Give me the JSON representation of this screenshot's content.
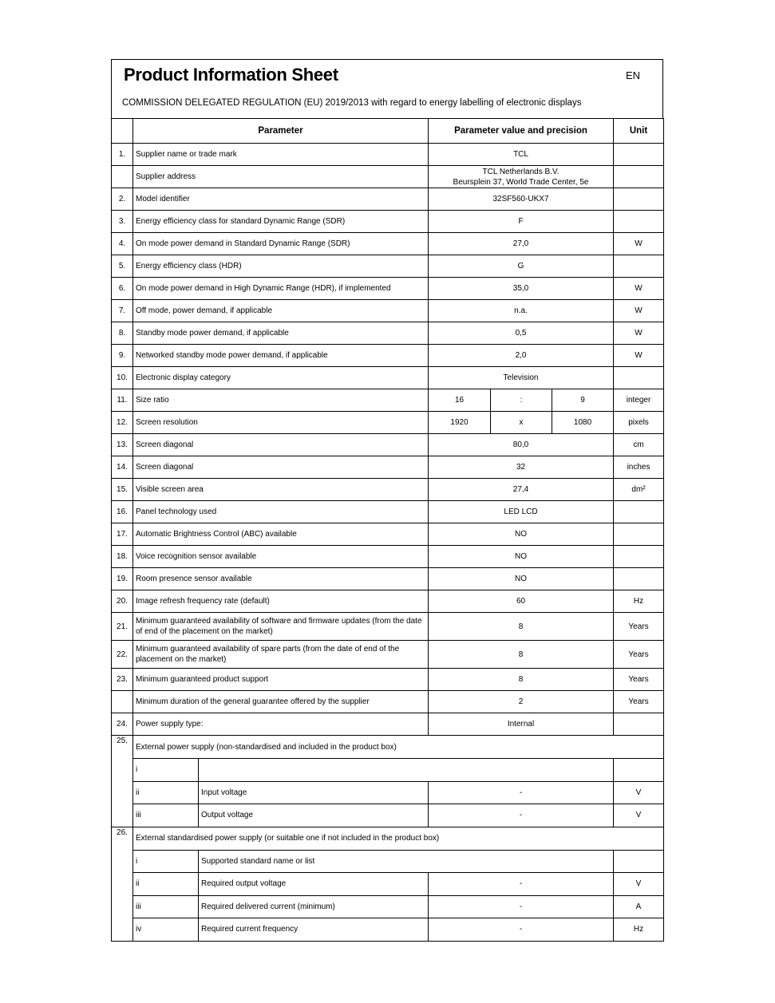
{
  "header": {
    "title": "Product Information Sheet",
    "language": "EN",
    "regulation": "COMMISSION DELEGATED REGULATION (EU) 2019/2013 with regard to energy labelling of electronic displays"
  },
  "columns": {
    "parameter": "Parameter",
    "value": "Parameter value and precision",
    "unit": "Unit"
  },
  "rows": [
    {
      "no": "1.",
      "param": "Supplier name or trade mark",
      "value": "TCL",
      "unit": ""
    },
    {
      "no": "",
      "param": "Supplier address",
      "value": "TCL Netherlands B.V.",
      "value2": "Beursplein 37, World Trade Center, 5e",
      "unit": ""
    },
    {
      "no": "2.",
      "param": "Model identifier",
      "value": "32SF560-UKX7",
      "unit": ""
    },
    {
      "no": "3.",
      "param": "Energy efficiency class for standard Dynamic Range (SDR)",
      "value": "F",
      "unit": ""
    },
    {
      "no": "4.",
      "param": "On mode power demand in Standard Dynamic Range (SDR)",
      "value": "27,0",
      "unit": "W"
    },
    {
      "no": "5.",
      "param": "Energy efficiency class (HDR)",
      "value": "G",
      "unit": ""
    },
    {
      "no": "6.",
      "param": "On mode power demand in High Dynamic Range (HDR), if implemented",
      "value": "35,0",
      "unit": "W"
    },
    {
      "no": "7.",
      "param": "Off mode, power demand, if applicable",
      "value": "n.a.",
      "unit": "W"
    },
    {
      "no": "8.",
      "param": "Standby mode power demand, if applicable",
      "value": "0,5",
      "unit": "W"
    },
    {
      "no": "9.",
      "param": "Networked standby mode power demand, if applicable",
      "value": "2,0",
      "unit": "W"
    },
    {
      "no": "10.",
      "param": "Electronic display category",
      "value": "Television",
      "unit": ""
    },
    {
      "no": "11.",
      "param": "Size ratio",
      "split": [
        "16",
        ":",
        "9"
      ],
      "unit": "integer"
    },
    {
      "no": "12.",
      "param": "Screen resolution",
      "split": [
        "1920",
        "x",
        "1080"
      ],
      "unit": "pixels"
    },
    {
      "no": "13.",
      "param": "Screen diagonal",
      "value": "80,0",
      "unit": "cm"
    },
    {
      "no": "14.",
      "param": "Screen diagonal",
      "value": "32",
      "unit": "inches"
    },
    {
      "no": "15.",
      "param": "Visible screen area",
      "value": "27,4",
      "unit": "dm²"
    },
    {
      "no": "16.",
      "param": "Panel technology used",
      "value": "LED LCD",
      "unit": ""
    },
    {
      "no": "17.",
      "param": "Automatic Brightness Control (ABC) available",
      "value": "NO",
      "unit": ""
    },
    {
      "no": "18.",
      "param": "Voice recognition sensor available",
      "value": "NO",
      "unit": ""
    },
    {
      "no": "19.",
      "param": "Room presence sensor available",
      "value": "NO",
      "unit": ""
    },
    {
      "no": "20.",
      "param": "Image refresh frequency rate (default)",
      "value": "60",
      "unit": "Hz"
    },
    {
      "no": "21.",
      "param": "Minimum guaranteed availability of software and firmware updates (from the date of end of the placement on the market)",
      "value": "8",
      "unit": "Years",
      "tall": true
    },
    {
      "no": "22.",
      "param": "Minimum guaranteed availability of spare parts (from the date of end of the placement on the market)",
      "value": "8",
      "unit": "Years",
      "tall": true
    },
    {
      "no": "23.",
      "param": "Minimum guaranteed product support",
      "value": "8",
      "unit": "Years"
    },
    {
      "no": "",
      "param": "Minimum duration of the general guarantee offered by the supplier",
      "value": "2",
      "unit": "Years"
    },
    {
      "no": "24.",
      "param": "Power supply type:",
      "value": "Internal",
      "unit": ""
    }
  ],
  "sections": [
    {
      "no": "25.",
      "title": "External power supply (non-standardised and included in the product box)",
      "items": [
        {
          "idx": "i",
          "param": "",
          "wide": true,
          "unit": ""
        },
        {
          "idx": "ii",
          "param": "Input voltage",
          "value": "-",
          "unit": "V"
        },
        {
          "idx": "iii",
          "param": "Output voltage",
          "value": "-",
          "unit": "V"
        }
      ]
    },
    {
      "no": "26.",
      "title": "External standardised power supply (or suitable one if not included in the product box)",
      "items": [
        {
          "idx": "i",
          "param": "Supported standard name or list",
          "wide": true,
          "unit": ""
        },
        {
          "idx": "ii",
          "param": "Required output voltage",
          "value": "-",
          "unit": "V"
        },
        {
          "idx": "iii",
          "param": "Required delivered current  (minimum)",
          "value": "-",
          "unit": "A"
        },
        {
          "idx": "iv",
          "param": "Required current frequency",
          "value": "-",
          "unit": "Hz"
        }
      ]
    }
  ]
}
